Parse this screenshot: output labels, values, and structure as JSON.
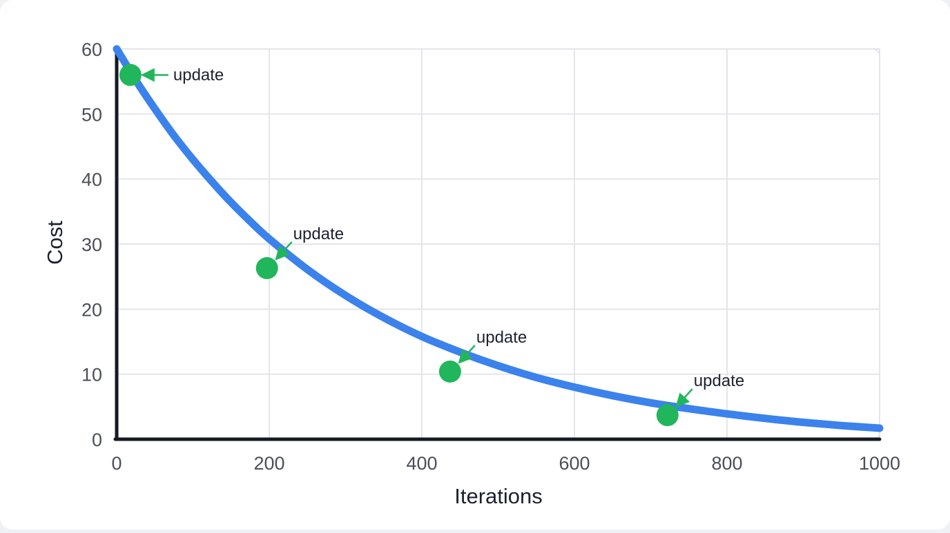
{
  "chart_data": {
    "type": "line",
    "title": "",
    "xlabel": "Iterations",
    "ylabel": "Cost",
    "xlim": [
      0,
      1000
    ],
    "ylim": [
      0,
      60
    ],
    "x_ticks": [
      0,
      200,
      400,
      600,
      800,
      1000
    ],
    "y_ticks": [
      0,
      10,
      20,
      30,
      40,
      50,
      60
    ],
    "grid": true,
    "legend": "none",
    "curve": {
      "x": [
        0,
        25,
        50,
        75,
        100,
        125,
        150,
        175,
        200,
        250,
        300,
        350,
        400,
        450,
        500,
        550,
        600,
        650,
        700,
        750,
        800,
        850,
        900,
        950,
        1000
      ],
      "y": [
        60,
        55.2,
        50.8,
        46.7,
        43,
        39.6,
        36.4,
        33.5,
        30.8,
        26.1,
        22.1,
        18.7,
        15.8,
        13.4,
        11.3,
        9.5,
        8,
        6.7,
        5.6,
        4.7,
        3.9,
        3.2,
        2.6,
        2.1,
        1.7
      ]
    },
    "annotations": [
      {
        "x": 18,
        "y": 56,
        "label": "update"
      },
      {
        "x": 197,
        "y": 26.3,
        "label": "update"
      },
      {
        "x": 437,
        "y": 10.4,
        "label": "update"
      },
      {
        "x": 722,
        "y": 3.7,
        "label": "update"
      }
    ],
    "colors": {
      "line": "#3b82ec",
      "marker": "#22b65c",
      "grid": "#e3e5ea",
      "axis": "#141a26"
    }
  }
}
